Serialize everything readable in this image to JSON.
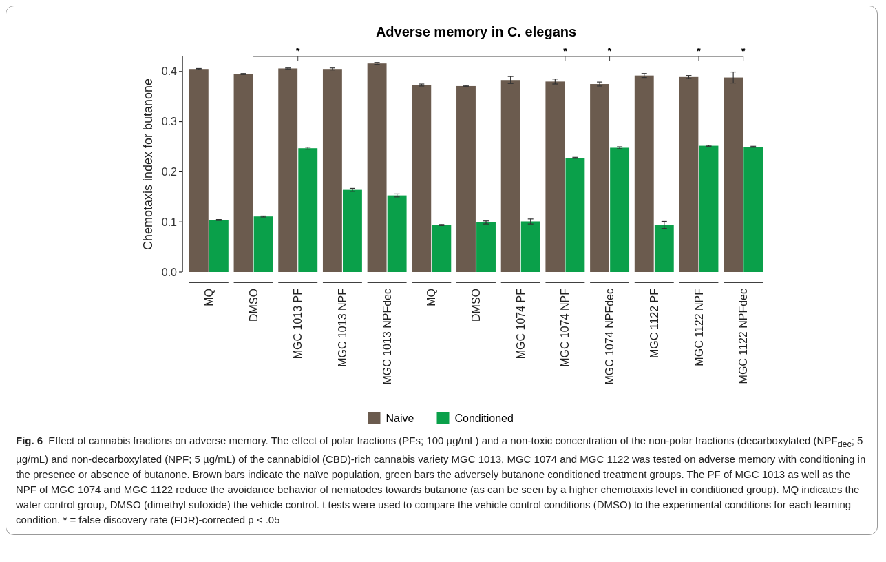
{
  "chart_data": {
    "type": "bar",
    "title": "Adverse memory in C. elegans",
    "categories": [
      "MQ",
      "DMSO",
      "MGC 1013 PF",
      "MGC 1013 NPF",
      "MGC 1013 NPFdec",
      "MQ",
      "DMSO",
      "MGC 1074 PF",
      "MGC 1074 NPF",
      "MGC 1074 NPFdec",
      "MGC 1122 PF",
      "MGC 1122 NPF",
      "MGC 1122 NPFdec"
    ],
    "series": [
      {
        "name": "Naive",
        "color": "#6b5b4e",
        "values": [
          0.405,
          0.395,
          0.406,
          0.405,
          0.416,
          0.373,
          0.371,
          0.383,
          0.38,
          0.375,
          0.392,
          0.389,
          0.388
        ],
        "errors": [
          0.001,
          0.001,
          0.001,
          0.002,
          0.002,
          0.002,
          0.001,
          0.007,
          0.005,
          0.004,
          0.004,
          0.003,
          0.011
        ]
      },
      {
        "name": "Conditioned",
        "color": "#0aa04a",
        "values": [
          0.104,
          0.111,
          0.247,
          0.164,
          0.153,
          0.094,
          0.099,
          0.101,
          0.228,
          0.248,
          0.094,
          0.252,
          0.25
        ],
        "errors": [
          0.001,
          0.001,
          0.002,
          0.003,
          0.003,
          0.001,
          0.003,
          0.005,
          0.001,
          0.002,
          0.007,
          0.001,
          0.001
        ]
      }
    ],
    "ylabel": "Chemotaxis index for butanone",
    "ylim": [
      0,
      0.43
    ],
    "yticks": [
      {
        "value": 0,
        "label": "0.0"
      },
      0.1,
      0.2,
      0.3,
      0.4
    ],
    "grid": false,
    "legend": "bottom",
    "annotations": [
      "*",
      "*",
      "*",
      "*",
      "*",
      "Fig. 6",
      "Effect of cannabis fractions on adverse memory. The effect of polar fractions (PFs; 100 µg/mL) and a non-toxic concentration of the non-polar fractions (decarboxylated (NPF$_{dec}$; 5 µg/mL) and non-decarboxylated (NPF; 5 µg/mL) of the cannabidiol (CBD)-rich cannabis variety MGC 1013, MGC 1074 and MGC 1122 was tested on adverse memory with conditioning in the presence or absence of butanone. Brown bars indicate the naïve population, green bars the adversely butanone conditioned treatment groups. The PF of MGC 1013 as well as the NPF of MGC 1074 and MGC 1122 reduce the avoidance behavior of nematodes towards butanone (as can be seen by a higher chemotaxis level in conditioned group). MQ indicates the water control group, DMSO (dimethyl sufoxide) the vehicle control. t tests were used to compare the vehicle control conditions (DMSO) to the experimental conditions for each learning condition. * = false discovery rate (FDR)-corrected p < .05"
    ]
  }
}
